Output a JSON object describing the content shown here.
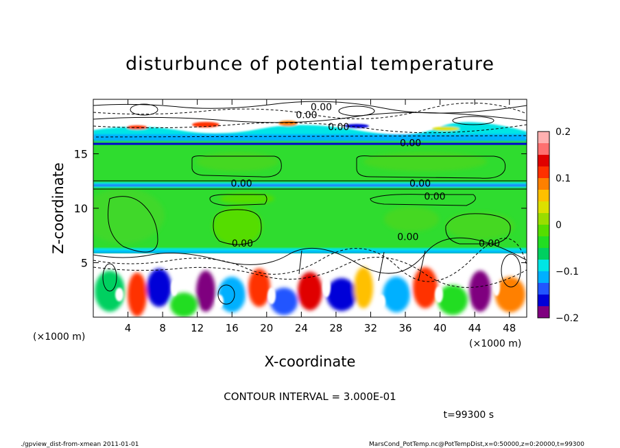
{
  "chart_data": {
    "type": "heatmap",
    "title": "disturbunce of potential temperature",
    "xlabel": "X-coordinate",
    "ylabel": "Z-coordinate",
    "x_unit_left": "(×1000 m)",
    "x_unit_right": "(×1000 m)",
    "xlim": [
      0,
      50
    ],
    "ylim": [
      0,
      20
    ],
    "x_ticks": [
      4,
      8,
      12,
      16,
      20,
      24,
      28,
      32,
      36,
      40,
      44,
      48
    ],
    "y_ticks": [
      5,
      10,
      15
    ],
    "colorbar": {
      "range": [
        -0.2,
        0.2
      ],
      "tick_labels": [
        {
          "value": 0.2,
          "label": "0.2"
        },
        {
          "value": 0.1,
          "label": "0.1"
        },
        {
          "value": 0,
          "label": "0"
        },
        {
          "value": -0.1,
          "label": "−0.1"
        },
        {
          "value": -0.2,
          "label": "−0.2"
        }
      ],
      "colors": [
        "#7f007f",
        "#0000d8",
        "#2255ff",
        "#00b0ff",
        "#00e5e5",
        "#00d060",
        "#22dd22",
        "#55dd00",
        "#99dd00",
        "#dde000",
        "#ffc000",
        "#ff8000",
        "#ff3000",
        "#e00000",
        "#ff7070",
        "#ffb0b0"
      ]
    },
    "contour_labels": [
      {
        "text": "0.00",
        "x": 26.3,
        "y": 19.3
      },
      {
        "text": "0.00",
        "x": 24.6,
        "y": 18.6
      },
      {
        "text": "0.00",
        "x": 28.3,
        "y": 17.5
      },
      {
        "text": "0.00",
        "x": 36.6,
        "y": 16.0
      },
      {
        "text": "0.00",
        "x": 17.1,
        "y": 12.3
      },
      {
        "text": "0.00",
        "x": 37.7,
        "y": 12.3
      },
      {
        "text": "0.00",
        "x": 39.4,
        "y": 11.1
      },
      {
        "text": "0.00",
        "x": 17.2,
        "y": 6.8
      },
      {
        "text": "0.00",
        "x": 36.3,
        "y": 7.4
      },
      {
        "text": "0.00",
        "x": 45.7,
        "y": 6.8
      }
    ]
  },
  "contour_interval": "CONTOUR INTERVAL = 3.000E-01",
  "time_label": "t=99300 s",
  "footer_left": "./gpview_dist-from-xmean   2011-01-01",
  "footer_right": "MarsCond_PotTemp.nc@PotTempDist,x=0:50000,z=0:20000,t=99300"
}
